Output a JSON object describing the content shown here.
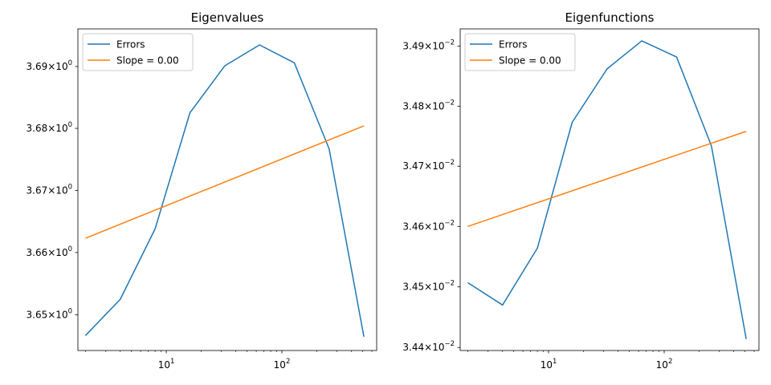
{
  "chart_data": [
    {
      "type": "line",
      "title": "Eigenvalues",
      "xlabel": "",
      "ylabel": "",
      "xscale": "log",
      "yscale": "log",
      "xlim": [
        1.72,
        660
      ],
      "ylim": [
        3.6443,
        3.6961
      ],
      "x_ticks": [
        {
          "value": 10,
          "label": "10",
          "sup": "1"
        },
        {
          "value": 100,
          "label": "10",
          "sup": "2"
        }
      ],
      "y_ticks": [
        {
          "value": 3.65,
          "label": "3.65×10",
          "sup": "0"
        },
        {
          "value": 3.66,
          "label": "3.66×10",
          "sup": "0"
        },
        {
          "value": 3.67,
          "label": "3.67×10",
          "sup": "0"
        },
        {
          "value": 3.68,
          "label": "3.68×10",
          "sup": "0"
        },
        {
          "value": 3.69,
          "label": "3.69×10",
          "sup": "0"
        }
      ],
      "legend_position": "upper-left",
      "grid": false,
      "series": [
        {
          "name": "Errors",
          "color": "#1f77b4",
          "x": [
            2,
            4,
            8,
            16,
            32,
            64,
            128,
            256,
            512
          ],
          "y": [
            3.6467,
            3.6525,
            3.6638,
            3.6825,
            3.6901,
            3.6935,
            3.6906,
            3.6767,
            3.6465
          ]
        },
        {
          "name": "Slope = 0.00",
          "color": "#ff7f0e",
          "x": [
            2,
            512
          ],
          "y": [
            3.6623,
            3.6804
          ]
        }
      ]
    },
    {
      "type": "line",
      "title": "Eigenfunctions",
      "xlabel": "",
      "ylabel": "",
      "xscale": "log",
      "yscale": "log",
      "xlim": [
        1.72,
        660
      ],
      "ylim": [
        0.034395,
        0.034929
      ],
      "x_ticks": [
        {
          "value": 10,
          "label": "10",
          "sup": "1"
        },
        {
          "value": 100,
          "label": "10",
          "sup": "2"
        }
      ],
      "y_ticks": [
        {
          "value": 0.0344,
          "label": "3.44×10",
          "sup": "−2"
        },
        {
          "value": 0.0345,
          "label": "3.45×10",
          "sup": "−2"
        },
        {
          "value": 0.0346,
          "label": "3.46×10",
          "sup": "−2"
        },
        {
          "value": 0.0347,
          "label": "3.47×10",
          "sup": "−2"
        },
        {
          "value": 0.0348,
          "label": "3.48×10",
          "sup": "−2"
        },
        {
          "value": 0.0349,
          "label": "3.49×10",
          "sup": "−2"
        }
      ],
      "legend_position": "upper-left",
      "grid": false,
      "series": [
        {
          "name": "Errors",
          "color": "#1f77b4",
          "x": [
            2,
            4,
            8,
            16,
            32,
            64,
            128,
            256,
            512
          ],
          "y": [
            0.034507,
            0.03447,
            0.034564,
            0.034773,
            0.034862,
            0.034909,
            0.034882,
            0.034734,
            0.034414
          ]
        },
        {
          "name": "Slope = 0.00",
          "color": "#ff7f0e",
          "x": [
            2,
            512
          ],
          "y": [
            0.0346,
            0.034758
          ]
        }
      ]
    }
  ]
}
